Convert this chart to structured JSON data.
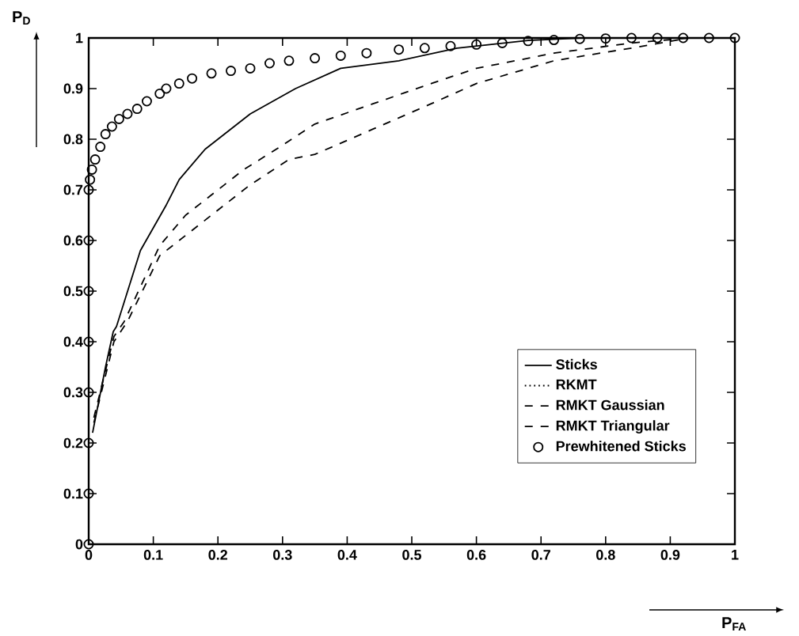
{
  "chart_data": {
    "type": "line",
    "xlabel": "P$_{FA}$",
    "ylabel": "P$_{D}$",
    "xlim": [
      0,
      1
    ],
    "ylim": [
      0,
      1
    ],
    "xticks": [
      0,
      0.1,
      0.2,
      0.3,
      0.4,
      0.5,
      0.6,
      0.7,
      0.8,
      0.9,
      1
    ],
    "yticks": [
      0,
      0.1,
      0.2,
      0.3,
      0.4,
      0.5,
      0.6,
      0.7,
      0.8,
      0.9,
      1
    ],
    "grid": false,
    "legend": "bottom right",
    "series": [
      {
        "name": "Sticks",
        "color": "#000000",
        "line_style": "solid",
        "marker": "none",
        "x": [
          0.006,
          0.026,
          0.038,
          0.043,
          0.08,
          0.12,
          0.14,
          0.18,
          0.25,
          0.32,
          0.39,
          0.48,
          0.57,
          0.68,
          0.76,
          1
        ],
        "values": [
          0.22,
          0.35,
          0.42,
          0.43,
          0.58,
          0.67,
          0.72,
          0.78,
          0.85,
          0.9,
          0.94,
          0.955,
          0.98,
          0.995,
          1,
          1
        ]
      },
      {
        "name": "RKMT",
        "color": "#000000",
        "line_style": "dotted",
        "marker": "none"
      },
      {
        "name": "RMKT Gaussian",
        "color": "#000000",
        "line_style": "dashed",
        "marker": "none",
        "x": [
          0.008,
          0.039,
          0.055,
          0.11,
          0.15,
          0.21,
          0.24,
          0.29,
          0.35,
          0.44,
          0.53,
          0.6,
          0.72,
          0.84,
          0.93
        ],
        "values": [
          0.25,
          0.41,
          0.44,
          0.59,
          0.65,
          0.71,
          0.74,
          0.78,
          0.83,
          0.87,
          0.91,
          0.94,
          0.97,
          0.99,
          1
        ]
      },
      {
        "name": "RMKT Triangular",
        "color": "#000000",
        "line_style": "dashed",
        "marker": "none",
        "x": [
          0.008,
          0.039,
          0.06,
          0.11,
          0.15,
          0.19,
          0.25,
          0.31,
          0.35,
          0.44,
          0.53,
          0.6,
          0.72,
          0.84,
          0.93
        ],
        "values": [
          0.24,
          0.4,
          0.44,
          0.57,
          0.61,
          0.65,
          0.71,
          0.76,
          0.77,
          0.82,
          0.87,
          0.91,
          0.955,
          0.98,
          1
        ]
      },
      {
        "name": "Prewhitened Sticks",
        "color": "#000000",
        "type": "scatter",
        "marker": "circle",
        "x": [
          0,
          0,
          0,
          0,
          0,
          0,
          0,
          0,
          0.002,
          0.005,
          0.01,
          0.018,
          0.026,
          0.036,
          0.047,
          0.06,
          0.075,
          0.09,
          0.11,
          0.12,
          0.14,
          0.16,
          0.19,
          0.22,
          0.25,
          0.28,
          0.31,
          0.35,
          0.39,
          0.43,
          0.48,
          0.52,
          0.56,
          0.6,
          0.64,
          0.68,
          0.72,
          0.76,
          0.8,
          0.84,
          0.88,
          0.92,
          0.96,
          1
        ],
        "values": [
          0,
          0.1,
          0.2,
          0.3,
          0.4,
          0.5,
          0.6,
          0.7,
          0.72,
          0.74,
          0.76,
          0.785,
          0.81,
          0.825,
          0.84,
          0.85,
          0.86,
          0.875,
          0.89,
          0.9,
          0.91,
          0.92,
          0.93,
          0.935,
          0.94,
          0.95,
          0.955,
          0.96,
          0.965,
          0.97,
          0.977,
          0.98,
          0.984,
          0.987,
          0.99,
          0.994,
          0.996,
          0.998,
          0.999,
          1,
          1,
          1,
          1,
          1
        ]
      }
    ]
  }
}
